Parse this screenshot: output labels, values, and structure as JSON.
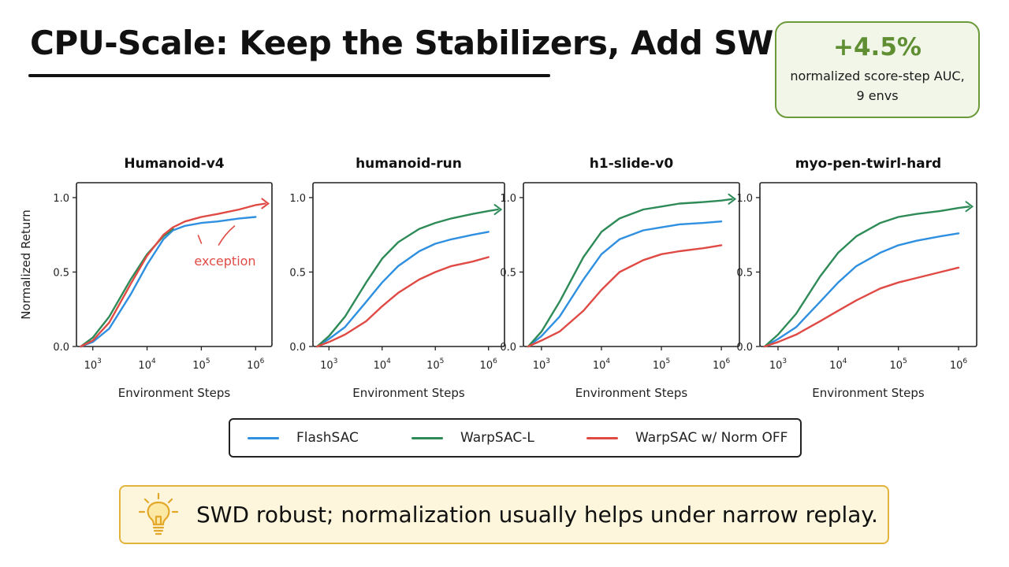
{
  "header": {
    "title": "CPU-Scale: Keep the Stabilizers, Add SWD"
  },
  "stat": {
    "value": "+4.5%",
    "line1": "normalized score-step AUC,",
    "line2": "9 envs"
  },
  "colors": {
    "flashsac": "#2f8fe0",
    "warpsac_l": "#2e8b57",
    "warpsac_norm_off": "#e04a45",
    "accent_green": "#5f8e33",
    "callout_border": "#e3b43c"
  },
  "legend": {
    "items": [
      {
        "label": "FlashSAC",
        "color": "#2f8fe0"
      },
      {
        "label": "WarpSAC-L",
        "color": "#2e8b57"
      },
      {
        "label": "WarpSAC w/ Norm OFF",
        "color": "#e04a45"
      }
    ]
  },
  "callout": {
    "icon": "lightbulb-icon",
    "text": "SWD robust; normalization usually helps under narrow replay."
  },
  "chart_data": [
    {
      "type": "line",
      "title": "Humanoid-v4",
      "xlabel": "Environment Steps",
      "ylabel": "Normalized Return",
      "xscale": "log",
      "xlim": [
        500,
        2000000
      ],
      "ylim": [
        0,
        1.1
      ],
      "xticks": [
        "10^3",
        "10^4",
        "10^5",
        "10^6"
      ],
      "yticks": [
        "0.0",
        "0.5",
        "1.0"
      ],
      "grid": false,
      "annotation": {
        "text": "exception",
        "color": "#e04a45"
      },
      "series": [
        {
          "name": "FlashSAC",
          "color": "#2f8fe0",
          "x": [
            600,
            1000,
            2000,
            5000,
            10000,
            20000,
            30000,
            50000,
            100000,
            200000,
            500000,
            1000000
          ],
          "y": [
            0.0,
            0.03,
            0.12,
            0.35,
            0.55,
            0.72,
            0.78,
            0.81,
            0.83,
            0.84,
            0.86,
            0.87
          ]
        },
        {
          "name": "WarpSAC-L",
          "color": "#2e8b57",
          "x": [
            600,
            1000,
            2000,
            5000,
            10000,
            20000,
            30000
          ],
          "y": [
            0.0,
            0.06,
            0.2,
            0.45,
            0.62,
            0.74,
            0.79
          ]
        },
        {
          "name": "WarpSAC w/ Norm OFF",
          "color": "#e04a45",
          "x": [
            600,
            1000,
            2000,
            5000,
            10000,
            20000,
            30000,
            50000,
            100000,
            200000,
            500000,
            1000000,
            1500000
          ],
          "y": [
            0.0,
            0.04,
            0.16,
            0.42,
            0.61,
            0.75,
            0.8,
            0.84,
            0.87,
            0.89,
            0.92,
            0.95,
            0.96
          ]
        }
      ]
    },
    {
      "type": "line",
      "title": "humanoid-run",
      "xlabel": "Environment Steps",
      "ylabel": "",
      "xscale": "log",
      "xlim": [
        500,
        2000000
      ],
      "ylim": [
        0,
        1.1
      ],
      "xticks": [
        "10^3",
        "10^4",
        "10^5",
        "10^6"
      ],
      "yticks": [
        "0.0",
        "0.5",
        "1.0"
      ],
      "grid": false,
      "series": [
        {
          "name": "FlashSAC",
          "color": "#2f8fe0",
          "x": [
            600,
            1000,
            2000,
            5000,
            10000,
            20000,
            50000,
            100000,
            200000,
            500000,
            1000000
          ],
          "y": [
            0.0,
            0.05,
            0.13,
            0.3,
            0.43,
            0.54,
            0.64,
            0.69,
            0.72,
            0.75,
            0.77
          ]
        },
        {
          "name": "WarpSAC-L",
          "color": "#2e8b57",
          "x": [
            600,
            1000,
            2000,
            5000,
            10000,
            20000,
            50000,
            100000,
            200000,
            500000,
            1000000,
            1500000
          ],
          "y": [
            0.0,
            0.07,
            0.2,
            0.43,
            0.59,
            0.7,
            0.79,
            0.83,
            0.86,
            0.89,
            0.91,
            0.92
          ]
        },
        {
          "name": "WarpSAC w/ Norm OFF",
          "color": "#e04a45",
          "x": [
            600,
            1000,
            2000,
            5000,
            10000,
            20000,
            50000,
            100000,
            200000,
            500000,
            1000000
          ],
          "y": [
            0.0,
            0.03,
            0.08,
            0.17,
            0.27,
            0.36,
            0.45,
            0.5,
            0.54,
            0.57,
            0.6
          ]
        }
      ]
    },
    {
      "type": "line",
      "title": "h1-slide-v0",
      "xlabel": "Environment Steps",
      "ylabel": "",
      "xscale": "log",
      "xlim": [
        500,
        2000000
      ],
      "ylim": [
        0,
        1.1
      ],
      "xticks": [
        "10^3",
        "10^4",
        "10^5",
        "10^6"
      ],
      "yticks": [
        "0.0",
        "0.5",
        "1.0"
      ],
      "grid": false,
      "series": [
        {
          "name": "FlashSAC",
          "color": "#2f8fe0",
          "x": [
            600,
            1000,
            2000,
            5000,
            10000,
            20000,
            50000,
            100000,
            200000,
            500000,
            1000000
          ],
          "y": [
            0.0,
            0.07,
            0.2,
            0.45,
            0.62,
            0.72,
            0.78,
            0.8,
            0.82,
            0.83,
            0.84
          ]
        },
        {
          "name": "WarpSAC-L",
          "color": "#2e8b57",
          "x": [
            600,
            1000,
            2000,
            5000,
            10000,
            20000,
            50000,
            100000,
            200000,
            500000,
            1000000,
            1500000
          ],
          "y": [
            0.0,
            0.1,
            0.3,
            0.6,
            0.77,
            0.86,
            0.92,
            0.94,
            0.96,
            0.97,
            0.98,
            0.99
          ]
        },
        {
          "name": "WarpSAC w/ Norm OFF",
          "color": "#e04a45",
          "x": [
            600,
            1000,
            2000,
            5000,
            10000,
            20000,
            50000,
            100000,
            200000,
            500000,
            1000000
          ],
          "y": [
            0.0,
            0.04,
            0.1,
            0.24,
            0.38,
            0.5,
            0.58,
            0.62,
            0.64,
            0.66,
            0.68
          ]
        }
      ]
    },
    {
      "type": "line",
      "title": "myo-pen-twirl-hard",
      "xlabel": "Environment Steps",
      "ylabel": "",
      "xscale": "log",
      "xlim": [
        500,
        2000000
      ],
      "ylim": [
        0,
        1.1
      ],
      "xticks": [
        "10^3",
        "10^4",
        "10^5",
        "10^6"
      ],
      "yticks": [
        "0.0",
        "0.5",
        "1.0"
      ],
      "grid": false,
      "series": [
        {
          "name": "FlashSAC",
          "color": "#2f8fe0",
          "x": [
            600,
            1000,
            2000,
            5000,
            10000,
            20000,
            50000,
            100000,
            200000,
            500000,
            1000000
          ],
          "y": [
            0.0,
            0.05,
            0.13,
            0.3,
            0.43,
            0.54,
            0.63,
            0.68,
            0.71,
            0.74,
            0.76
          ]
        },
        {
          "name": "WarpSAC-L",
          "color": "#2e8b57",
          "x": [
            600,
            1000,
            2000,
            5000,
            10000,
            20000,
            50000,
            100000,
            200000,
            500000,
            1000000,
            1500000
          ],
          "y": [
            0.0,
            0.08,
            0.22,
            0.47,
            0.63,
            0.74,
            0.83,
            0.87,
            0.89,
            0.91,
            0.93,
            0.94
          ]
        },
        {
          "name": "WarpSAC w/ Norm OFF",
          "color": "#e04a45",
          "x": [
            600,
            1000,
            2000,
            5000,
            10000,
            20000,
            50000,
            100000,
            200000,
            500000,
            1000000
          ],
          "y": [
            0.0,
            0.03,
            0.08,
            0.17,
            0.24,
            0.31,
            0.39,
            0.43,
            0.46,
            0.5,
            0.53
          ]
        }
      ]
    }
  ]
}
